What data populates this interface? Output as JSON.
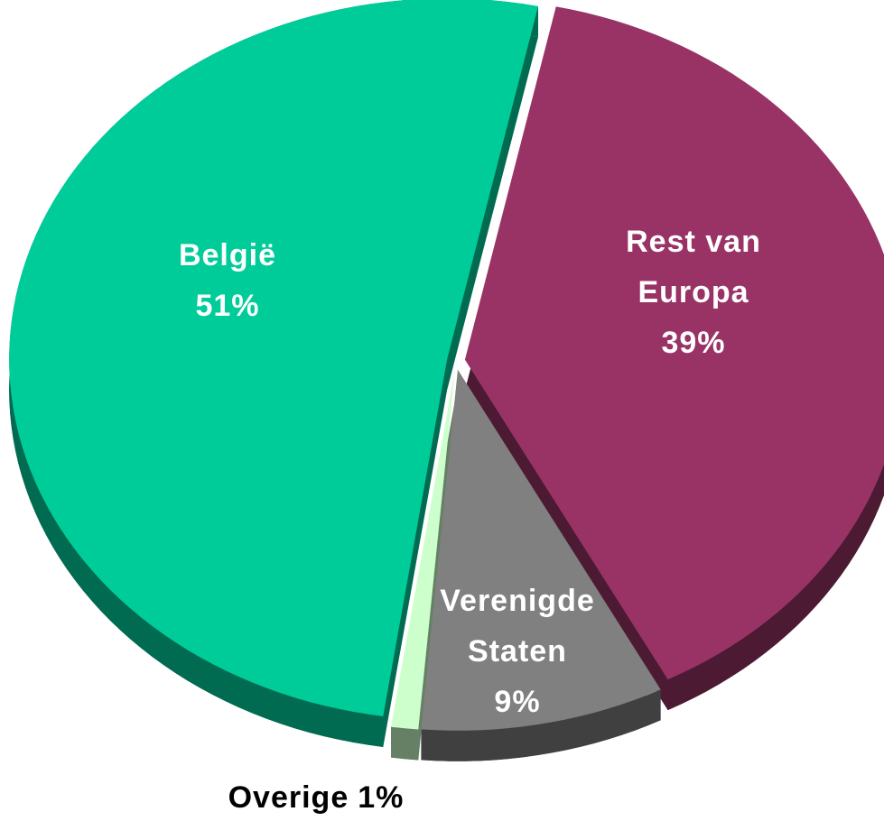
{
  "chart_data": {
    "type": "pie",
    "categories": [
      "België",
      "Rest van Europa",
      "Verenigde Staten",
      "Overige"
    ],
    "values": [
      51,
      39,
      9,
      1
    ],
    "value_labels": [
      "51%",
      "39%",
      "9%",
      "1%"
    ],
    "colors": [
      "#00cc99",
      "#993366",
      "#808080",
      "#ccffcc"
    ],
    "side_colors": [
      "#006b50",
      "#4d1a33",
      "#404040",
      "#668066"
    ],
    "label_colors": [
      "#ffffff",
      "#ffffff",
      "#ffffff",
      "#000000"
    ]
  }
}
